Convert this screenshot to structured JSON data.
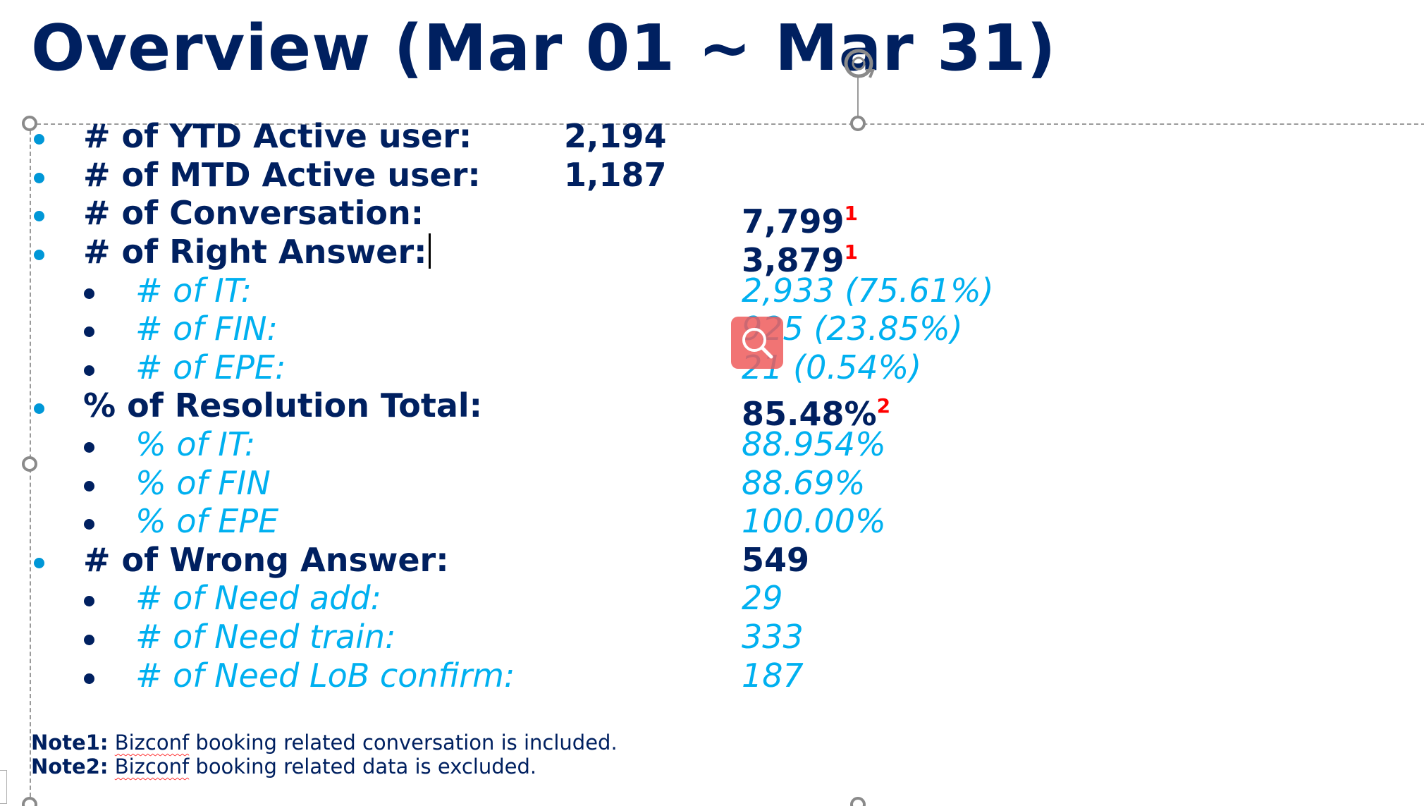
{
  "slide": {
    "title": "Overview (Mar 01 ~ Mar 31)"
  },
  "summary": {
    "ytd_active_user": {
      "label": "# of YTD Active user:",
      "value": "2,194"
    },
    "mtd_active_user": {
      "label": "# of MTD Active user:",
      "value": "1,187"
    },
    "conversation": {
      "label": "# of Conversation:",
      "value": "7,799",
      "note_ref": "1"
    },
    "right_answer": {
      "label": "# of Right Answer:",
      "value": "3,879",
      "note_ref": "1",
      "breakdown": [
        {
          "label": "# of IT:",
          "value": "2,933 (75.61%)"
        },
        {
          "label": "# of FIN:",
          "value": "925 (23.85%)"
        },
        {
          "label": "# of EPE:",
          "value": "21 (0.54%)"
        }
      ]
    },
    "resolution_total": {
      "label": "% of Resolution Total:",
      "value": "85.48%",
      "note_ref": "2",
      "breakdown": [
        {
          "label": "% of IT:",
          "value": "88.954%"
        },
        {
          "label": "% of FIN",
          "value": "88.69%"
        },
        {
          "label": "% of EPE",
          "value": "100.00%"
        }
      ]
    },
    "wrong_answer": {
      "label": "# of Wrong Answer:",
      "value": "549",
      "breakdown": [
        {
          "label": "# of Need add:",
          "value": "29"
        },
        {
          "label": "# of Need train:",
          "value": "333"
        },
        {
          "label": "# of Need LoB confirm:",
          "value": "187"
        }
      ]
    }
  },
  "notes": [
    {
      "label": "Note1:",
      "brand": "Bizconf",
      "text": " booking related conversation is included."
    },
    {
      "label": "Note2:",
      "brand": "Bizconf",
      "text": " booking related data is excluded."
    }
  ],
  "colors": {
    "title": "#002060",
    "level1_bullet": "#0097d7",
    "level2_text": "#00b0f0",
    "note_ref": "#ff0000"
  },
  "icons": {
    "rotate_handle": "rotate-handle-icon",
    "search_overlay": "search-magnifier-icon"
  }
}
